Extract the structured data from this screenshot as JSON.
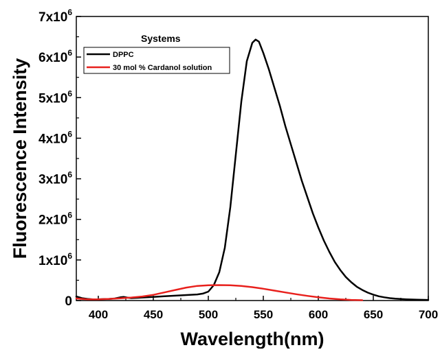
{
  "chart_data": {
    "type": "line",
    "title": "",
    "xlabel": "Wavelength(nm)",
    "ylabel": "Fluorescence Intensity",
    "xlim": [
      380,
      700
    ],
    "ylim": [
      0,
      7000000
    ],
    "x_ticks": [
      {
        "value": 400,
        "label": "400"
      },
      {
        "value": 450,
        "label": "450"
      },
      {
        "value": 500,
        "label": "500"
      },
      {
        "value": 550,
        "label": "550"
      },
      {
        "value": 600,
        "label": "600"
      },
      {
        "value": 650,
        "label": "650"
      },
      {
        "value": 700,
        "label": "700"
      }
    ],
    "y_ticks": [
      {
        "value": 0,
        "base": "0",
        "exp": ""
      },
      {
        "value": 1000000,
        "base": "1x10",
        "exp": "6"
      },
      {
        "value": 2000000,
        "base": "2x10",
        "exp": "6"
      },
      {
        "value": 3000000,
        "base": "3x10",
        "exp": "6"
      },
      {
        "value": 4000000,
        "base": "4x10",
        "exp": "6"
      },
      {
        "value": 5000000,
        "base": "5x10",
        "exp": "6"
      },
      {
        "value": 6000000,
        "base": "6x10",
        "exp": "6"
      },
      {
        "value": 7000000,
        "base": "7x10",
        "exp": "6"
      }
    ],
    "grid": false,
    "legend": {
      "title": "Systems",
      "placement": "top-left"
    },
    "series": [
      {
        "name": "DPPC",
        "color": "#000000",
        "points": [
          [
            380,
            100000
          ],
          [
            385,
            60000
          ],
          [
            390,
            40000
          ],
          [
            395,
            30000
          ],
          [
            400,
            30000
          ],
          [
            405,
            35000
          ],
          [
            410,
            40000
          ],
          [
            415,
            50000
          ],
          [
            420,
            80000
          ],
          [
            423,
            90000
          ],
          [
            426,
            75000
          ],
          [
            430,
            60000
          ],
          [
            440,
            75000
          ],
          [
            450,
            90000
          ],
          [
            460,
            105000
          ],
          [
            470,
            120000
          ],
          [
            480,
            135000
          ],
          [
            490,
            150000
          ],
          [
            495,
            170000
          ],
          [
            500,
            220000
          ],
          [
            505,
            380000
          ],
          [
            510,
            700000
          ],
          [
            515,
            1300000
          ],
          [
            520,
            2300000
          ],
          [
            525,
            3600000
          ],
          [
            530,
            4900000
          ],
          [
            535,
            5900000
          ],
          [
            540,
            6350000
          ],
          [
            543,
            6430000
          ],
          [
            546,
            6380000
          ],
          [
            550,
            6100000
          ],
          [
            555,
            5700000
          ],
          [
            560,
            5250000
          ],
          [
            565,
            4800000
          ],
          [
            570,
            4300000
          ],
          [
            575,
            3850000
          ],
          [
            580,
            3400000
          ],
          [
            585,
            2950000
          ],
          [
            590,
            2550000
          ],
          [
            595,
            2150000
          ],
          [
            600,
            1800000
          ],
          [
            605,
            1480000
          ],
          [
            610,
            1200000
          ],
          [
            615,
            950000
          ],
          [
            620,
            750000
          ],
          [
            625,
            580000
          ],
          [
            630,
            450000
          ],
          [
            635,
            340000
          ],
          [
            640,
            260000
          ],
          [
            645,
            195000
          ],
          [
            650,
            145000
          ],
          [
            655,
            105000
          ],
          [
            660,
            80000
          ],
          [
            665,
            60000
          ],
          [
            670,
            45000
          ],
          [
            680,
            30000
          ],
          [
            690,
            20000
          ],
          [
            700,
            15000
          ]
        ]
      },
      {
        "name": "30 mol % Cardanol solution",
        "color": "#e8201c",
        "points": [
          [
            380,
            50000
          ],
          [
            390,
            30000
          ],
          [
            400,
            30000
          ],
          [
            410,
            40000
          ],
          [
            420,
            55000
          ],
          [
            430,
            75000
          ],
          [
            440,
            100000
          ],
          [
            450,
            140000
          ],
          [
            460,
            200000
          ],
          [
            470,
            260000
          ],
          [
            480,
            320000
          ],
          [
            490,
            360000
          ],
          [
            500,
            375000
          ],
          [
            510,
            380000
          ],
          [
            520,
            375000
          ],
          [
            530,
            360000
          ],
          [
            540,
            330000
          ],
          [
            550,
            290000
          ],
          [
            560,
            245000
          ],
          [
            570,
            200000
          ],
          [
            580,
            155000
          ],
          [
            590,
            115000
          ],
          [
            600,
            80000
          ],
          [
            610,
            50000
          ],
          [
            620,
            28000
          ],
          [
            630,
            15000
          ],
          [
            640,
            8000
          ]
        ]
      }
    ]
  }
}
